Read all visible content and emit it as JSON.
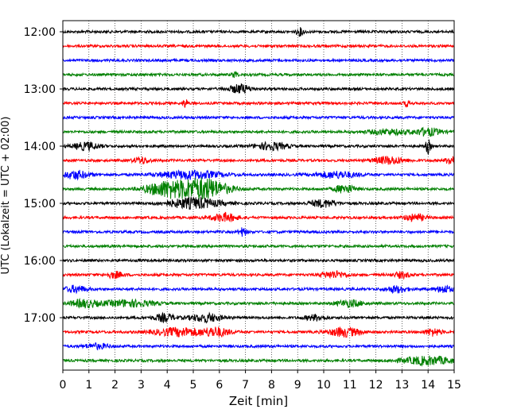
{
  "chart_data": {
    "type": "line",
    "title": "",
    "xlabel": "Zeit  [min]",
    "ylabel": "UTC (Lokalzeit = UTC + 02:00)",
    "xlim": [
      0,
      15
    ],
    "x_ticks": [
      0,
      1,
      2,
      3,
      4,
      5,
      6,
      7,
      8,
      9,
      10,
      11,
      12,
      13,
      14,
      15
    ],
    "y_tick_labels": [
      "12:00",
      "13:00",
      "14:00",
      "15:00",
      "16:00",
      "17:00"
    ],
    "trace_minutes": 15,
    "grid": "vertical dotted at each minute",
    "colors": [
      "#000000",
      "#ff0000",
      "#0000ff",
      "#008000"
    ],
    "series": [
      {
        "start": "12:00",
        "color": "#000000",
        "events": [
          [
            9.1,
            0.9,
            0.15
          ]
        ]
      },
      {
        "start": "12:15",
        "color": "#ff0000",
        "events": []
      },
      {
        "start": "12:30",
        "color": "#0000ff",
        "events": []
      },
      {
        "start": "12:45",
        "color": "#008000",
        "events": [
          [
            6.6,
            0.8,
            0.1
          ]
        ]
      },
      {
        "start": "13:00",
        "color": "#000000",
        "events": [
          [
            6.8,
            1.1,
            0.4
          ]
        ]
      },
      {
        "start": "13:15",
        "color": "#ff0000",
        "events": [
          [
            4.7,
            1.0,
            0.1
          ],
          [
            13.2,
            0.9,
            0.1
          ]
        ]
      },
      {
        "start": "13:30",
        "color": "#0000ff",
        "events": []
      },
      {
        "start": "13:45",
        "color": "#008000",
        "events": [
          [
            12.5,
            0.6,
            0.8
          ],
          [
            14.0,
            0.9,
            0.5
          ]
        ]
      },
      {
        "start": "14:00",
        "color": "#000000",
        "events": [
          [
            0.9,
            0.9,
            0.5
          ],
          [
            8.0,
            0.9,
            0.6
          ],
          [
            14.0,
            1.7,
            0.1
          ]
        ]
      },
      {
        "start": "14:15",
        "color": "#ff0000",
        "events": [
          [
            3.0,
            0.8,
            0.3
          ],
          [
            12.5,
            0.9,
            0.6
          ],
          [
            14.9,
            1.3,
            0.2
          ]
        ]
      },
      {
        "start": "14:30",
        "color": "#0000ff",
        "events": [
          [
            0.5,
            1.0,
            0.5
          ],
          [
            4.9,
            1.0,
            1.2
          ],
          [
            10.5,
            0.8,
            0.8
          ]
        ]
      },
      {
        "start": "14:45",
        "color": "#008000",
        "events": [
          [
            4.0,
            1.9,
            0.8
          ],
          [
            5.4,
            2.6,
            0.9
          ],
          [
            10.8,
            1.0,
            0.4
          ]
        ]
      },
      {
        "start": "15:00",
        "color": "#000000",
        "events": [
          [
            5.0,
            1.3,
            1.0
          ],
          [
            10.0,
            0.9,
            0.5
          ]
        ]
      },
      {
        "start": "15:15",
        "color": "#ff0000",
        "events": [
          [
            6.2,
            1.0,
            0.5
          ],
          [
            13.5,
            0.8,
            0.4
          ]
        ]
      },
      {
        "start": "15:30",
        "color": "#0000ff",
        "events": [
          [
            6.9,
            1.0,
            0.15
          ]
        ]
      },
      {
        "start": "15:45",
        "color": "#008000",
        "events": []
      },
      {
        "start": "16:00",
        "color": "#000000",
        "events": []
      },
      {
        "start": "16:15",
        "color": "#ff0000",
        "events": [
          [
            2.0,
            0.8,
            0.3
          ],
          [
            10.4,
            0.8,
            0.5
          ],
          [
            13.0,
            0.7,
            0.3
          ]
        ]
      },
      {
        "start": "16:30",
        "color": "#0000ff",
        "events": [
          [
            0.5,
            0.8,
            0.4
          ],
          [
            12.8,
            0.8,
            0.4
          ],
          [
            14.6,
            0.9,
            0.3
          ]
        ]
      },
      {
        "start": "16:45",
        "color": "#008000",
        "events": [
          [
            0.8,
            0.9,
            0.5
          ],
          [
            2.5,
            0.8,
            1.0
          ],
          [
            11.0,
            0.8,
            0.5
          ]
        ]
      },
      {
        "start": "17:00",
        "color": "#000000",
        "events": [
          [
            3.9,
            0.9,
            0.4
          ],
          [
            5.5,
            1.0,
            0.6
          ],
          [
            9.7,
            0.7,
            0.4
          ]
        ]
      },
      {
        "start": "17:15",
        "color": "#ff0000",
        "events": [
          [
            4.5,
            1.0,
            1.0
          ],
          [
            5.9,
            1.0,
            0.5
          ],
          [
            10.8,
            1.1,
            0.6
          ],
          [
            14.2,
            0.9,
            0.3
          ]
        ]
      },
      {
        "start": "17:30",
        "color": "#0000ff",
        "events": [
          [
            1.3,
            0.6,
            0.5
          ]
        ]
      },
      {
        "start": "17:45",
        "color": "#008000",
        "events": [
          [
            14.0,
            1.0,
            1.0
          ]
        ]
      }
    ]
  }
}
